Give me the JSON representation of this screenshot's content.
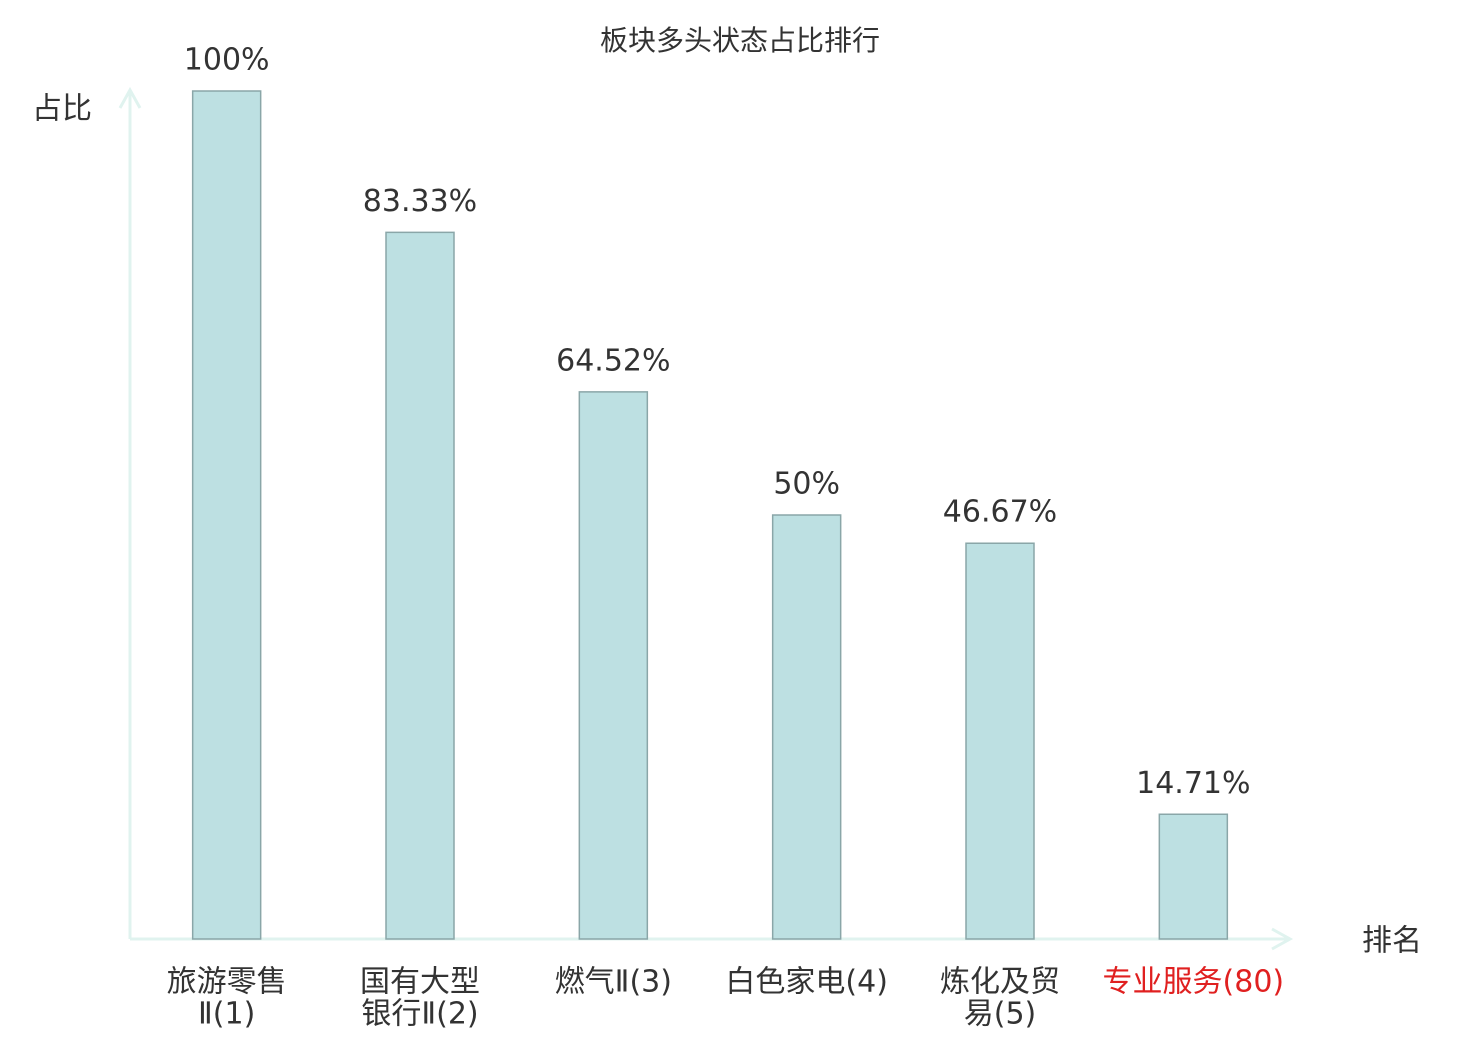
{
  "chart_data": {
    "type": "bar",
    "title": "板块多头状态占比排行",
    "y_label": "占比",
    "x_label": "排名",
    "categories": [
      [
        "旅游零售",
        "Ⅱ(1)"
      ],
      [
        "国有大型",
        "银行Ⅱ(2)"
      ],
      [
        "燃气Ⅱ(3)"
      ],
      [
        "白色家电(4)"
      ],
      [
        "炼化及贸",
        "易(5)"
      ],
      [
        "专业服务(80)"
      ]
    ],
    "values": [
      100,
      83.33,
      64.52,
      50,
      46.67,
      14.71
    ],
    "value_labels": [
      "100%",
      "83.33%",
      "64.52%",
      "50%",
      "46.67%",
      "14.71%"
    ],
    "color": "#bde0e2",
    "edge_color": "#8aa6a8",
    "axis_color": "#e0f3ef",
    "highlight_category": 5,
    "highlight_color": "#e02020",
    "ylim": [
      0,
      100
    ]
  }
}
